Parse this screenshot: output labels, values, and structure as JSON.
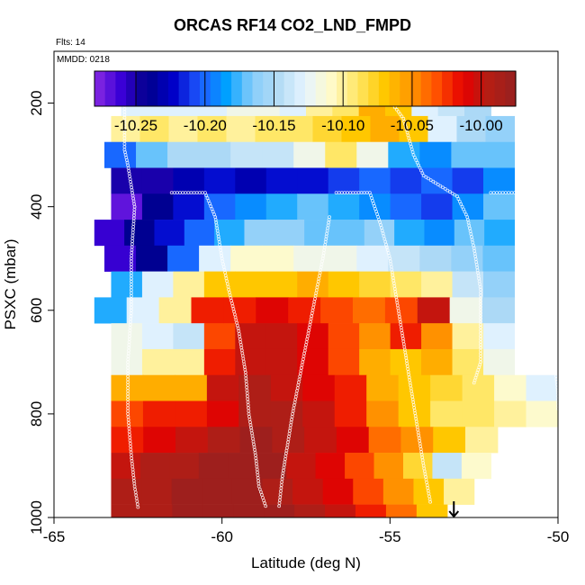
{
  "chart_data": {
    "type": "heatmap",
    "title": "ORCAS RF14 CO2_LND_FMPD",
    "flights_note": "Flts: 14",
    "date_note": "MMDD: 0218",
    "xlabel": "Latitude (deg N)",
    "ylabel": "PSXC (mbar)",
    "xlim": [
      -65,
      -50
    ],
    "ylim": [
      1000,
      100
    ],
    "x_ticks": [
      "-65",
      "-60",
      "-55",
      "-50"
    ],
    "y_ticks": [
      "200",
      "400",
      "600",
      "800",
      "1000"
    ],
    "x_tick_values": [
      -65,
      -60,
      -55,
      -50
    ],
    "y_tick_values": [
      200,
      400,
      600,
      800,
      1000
    ],
    "colorbar": {
      "min": -10.28,
      "max": -9.975,
      "ticks": [
        -10.25,
        -10.2,
        -10.15,
        -10.1,
        -10.05,
        -10.0
      ],
      "tick_labels": [
        "-10.25",
        "-10.20",
        "-10.15",
        "-10.10",
        "-10.05",
        "-10.00"
      ],
      "palette": [
        "#8a2be2",
        "#3a00d6",
        "#00008b",
        "#0000c8",
        "#1e5aff",
        "#00a0ff",
        "#87cdfa",
        "#b4dcf5",
        "#e6f4ff",
        "#fffac8",
        "#ffe664",
        "#ffc800",
        "#ff9600",
        "#ff5000",
        "#e60000",
        "#b41e14",
        "#962020"
      ]
    },
    "cells": [
      {
        "lat0": -63.0,
        "lat1": -52.0,
        "p0": 175,
        "p1": 225,
        "values": [
          -10.13,
          -10.13,
          -10.13,
          -10.13,
          -10.12,
          -10.12,
          -10.13,
          -10.1,
          -10.09,
          -10.06,
          -10.07,
          -10.13,
          -10.14,
          -10.15
        ]
      },
      {
        "lat0": -63.3,
        "lat1": -51.3,
        "p0": 225,
        "p1": 275,
        "values": [
          -10.1,
          -10.09,
          -10.1,
          -10.09,
          -10.1,
          -10.09,
          -10.09,
          -10.08,
          -10.07,
          -10.06,
          -10.07,
          -10.13,
          -10.15,
          -10.16
        ]
      },
      {
        "lat0": -63.5,
        "lat1": -51.3,
        "p0": 275,
        "p1": 325,
        "values": [
          -10.2,
          -10.17,
          -10.15,
          -10.15,
          -10.14,
          -10.14,
          -10.12,
          -10.09,
          -10.12,
          -10.18,
          -10.19,
          -10.17,
          -10.17
        ]
      },
      {
        "lat0": -63.3,
        "lat1": -51.3,
        "p0": 325,
        "p1": 375,
        "values": [
          -10.25,
          -10.25,
          -10.23,
          -10.22,
          -10.23,
          -10.22,
          -10.22,
          -10.21,
          -10.2,
          -10.21,
          -10.2,
          -10.21,
          -10.19
        ]
      },
      {
        "lat0": -63.3,
        "lat1": -51.3,
        "p0": 375,
        "p1": 425,
        "values": [
          -10.27,
          -10.24,
          -10.22,
          -10.2,
          -10.19,
          -10.18,
          -10.17,
          -10.18,
          -10.19,
          -10.2,
          -10.21,
          -10.19,
          -10.17
        ]
      },
      {
        "lat0": -63.8,
        "lat1": -51.3,
        "p0": 425,
        "p1": 475,
        "values": [
          -10.26,
          -10.24,
          -10.22,
          -10.2,
          -10.18,
          -10.16,
          -10.16,
          -10.17,
          -10.17,
          -10.16,
          -10.18,
          -10.19,
          -10.17,
          -10.18
        ]
      },
      {
        "lat0": -63.5,
        "lat1": -51.3,
        "p0": 475,
        "p1": 525,
        "values": [
          -10.26,
          -10.24,
          -10.2,
          -10.13,
          -10.11,
          -10.11,
          -10.12,
          -10.12,
          -10.13,
          -10.14,
          -10.15,
          -10.16,
          -10.17
        ]
      },
      {
        "lat0": -63.3,
        "lat1": -51.3,
        "p0": 525,
        "p1": 575,
        "values": [
          -10.18,
          -10.13,
          -10.1,
          -10.07,
          -10.07,
          -10.07,
          -10.06,
          -10.07,
          -10.08,
          -10.09,
          -10.1,
          -10.14,
          -10.16
        ]
      },
      {
        "lat0": -63.8,
        "lat1": -51.3,
        "p0": 575,
        "p1": 625,
        "values": [
          -10.18,
          -10.13,
          -10.1,
          -10.02,
          -10.02,
          -10.01,
          -10.02,
          -10.03,
          -10.04,
          -10.03,
          -10.0,
          -10.12,
          -10.15
        ]
      },
      {
        "lat0": -63.3,
        "lat1": -51.3,
        "p0": 625,
        "p1": 675,
        "values": [
          -10.12,
          -10.13,
          -10.14,
          -10.03,
          -10.0,
          -10.0,
          -10.01,
          -10.03,
          -10.05,
          -10.02,
          -10.05,
          -10.1,
          -10.13
        ]
      },
      {
        "lat0": -63.3,
        "lat1": -51.3,
        "p0": 675,
        "p1": 725,
        "values": [
          -10.12,
          -10.1,
          -10.1,
          -10.02,
          -10.0,
          -10.0,
          -10.01,
          -10.03,
          -10.06,
          -10.07,
          -10.06,
          -10.09,
          -10.12
        ]
      },
      {
        "lat0": -63.3,
        "lat1": -50.0,
        "p0": 725,
        "p1": 775,
        "values": [
          -10.06,
          -10.06,
          -10.06,
          -10.0,
          -9.99,
          -10.0,
          -10.01,
          -10.02,
          -10.06,
          -10.07,
          -10.08,
          -10.09,
          -10.11,
          -10.13
        ]
      },
      {
        "lat0": -63.3,
        "lat1": -50.0,
        "p0": 775,
        "p1": 825,
        "values": [
          -10.03,
          -10.02,
          -10.02,
          -10.01,
          -9.99,
          -9.99,
          -10.0,
          -10.02,
          -10.05,
          -10.07,
          -10.09,
          -10.09,
          -10.1,
          -10.11
        ]
      },
      {
        "lat0": -63.3,
        "lat1": -51.8,
        "p0": 825,
        "p1": 875,
        "values": [
          -10.02,
          -10.01,
          -10.0,
          -9.99,
          -9.98,
          -9.99,
          -10.0,
          -10.01,
          -10.04,
          -10.05,
          -10.07,
          -10.1
        ]
      },
      {
        "lat0": -63.3,
        "lat1": -52.0,
        "p0": 875,
        "p1": 925,
        "values": [
          -10.0,
          -9.99,
          -9.99,
          -9.98,
          -9.98,
          -9.98,
          -10.0,
          -10.01,
          -10.03,
          -10.05,
          -10.08,
          -10.14,
          -10.11
        ]
      },
      {
        "lat0": -63.3,
        "lat1": -52.5,
        "p0": 925,
        "p1": 975,
        "values": [
          -9.99,
          -9.99,
          -9.98,
          -9.98,
          -9.98,
          -9.99,
          -10.0,
          -10.01,
          -10.03,
          -10.05,
          -10.07,
          -10.1
        ]
      },
      {
        "lat0": -63.3,
        "lat1": -53.3,
        "p0": 975,
        "p1": 1000,
        "values": [
          -9.99,
          -9.99,
          -9.98,
          -9.98,
          -9.98,
          -9.98,
          -9.99,
          -10.0,
          -10.02,
          -10.04,
          -10.07
        ]
      }
    ],
    "flight_tracks": [
      [
        [
          -62.5,
          980
        ],
        [
          -62.6,
          940
        ],
        [
          -62.7,
          880
        ],
        [
          -62.8,
          800
        ],
        [
          -62.8,
          700
        ],
        [
          -62.7,
          600
        ],
        [
          -62.7,
          500
        ],
        [
          -62.6,
          400
        ],
        [
          -62.8,
          320
        ],
        [
          -62.9,
          290
        ],
        [
          -62.9,
          200
        ],
        [
          -63.0,
          178
        ]
      ],
      [
        [
          -61.5,
          373
        ],
        [
          -60.5,
          373
        ],
        [
          -60.2,
          420
        ],
        [
          -60.0,
          500
        ],
        [
          -59.8,
          560
        ],
        [
          -59.5,
          640
        ],
        [
          -59.3,
          720
        ],
        [
          -59.2,
          800
        ],
        [
          -59.0,
          880
        ],
        [
          -58.9,
          940
        ],
        [
          -58.7,
          978
        ]
      ],
      [
        [
          -58.3,
          978
        ],
        [
          -58.2,
          920
        ],
        [
          -57.9,
          800
        ],
        [
          -57.6,
          700
        ],
        [
          -57.3,
          600
        ],
        [
          -57.0,
          500
        ],
        [
          -56.8,
          420
        ]
      ],
      [
        [
          -56.6,
          373
        ],
        [
          -55.6,
          373
        ],
        [
          -55.3,
          430
        ],
        [
          -55.0,
          500
        ],
        [
          -54.8,
          580
        ],
        [
          -54.6,
          660
        ],
        [
          -54.4,
          740
        ],
        [
          -54.2,
          820
        ],
        [
          -54.0,
          900
        ],
        [
          -53.8,
          970
        ]
      ],
      [
        [
          -55.2,
          178
        ],
        [
          -54.6,
          230
        ],
        [
          -54.3,
          300
        ],
        [
          -54.0,
          340
        ],
        [
          -53.5,
          360
        ],
        [
          -53.0,
          380
        ],
        [
          -52.7,
          420
        ],
        [
          -52.5,
          480
        ],
        [
          -52.3,
          560
        ],
        [
          -52.3,
          650
        ],
        [
          -52.3,
          700
        ],
        [
          -52.5,
          740
        ]
      ],
      [
        [
          -52.0,
          373
        ],
        [
          -51.2,
          373
        ],
        [
          -50.9,
          420
        ],
        [
          -50.6,
          500
        ],
        [
          -50.4,
          580
        ],
        [
          -50.2,
          640
        ],
        [
          -50.1,
          700
        ],
        [
          -50.0,
          760
        ],
        [
          -50.0,
          790
        ]
      ],
      [
        [
          -52.0,
          178
        ],
        [
          -50.0,
          178
        ]
      ]
    ],
    "arrow_lat": -53.1
  }
}
